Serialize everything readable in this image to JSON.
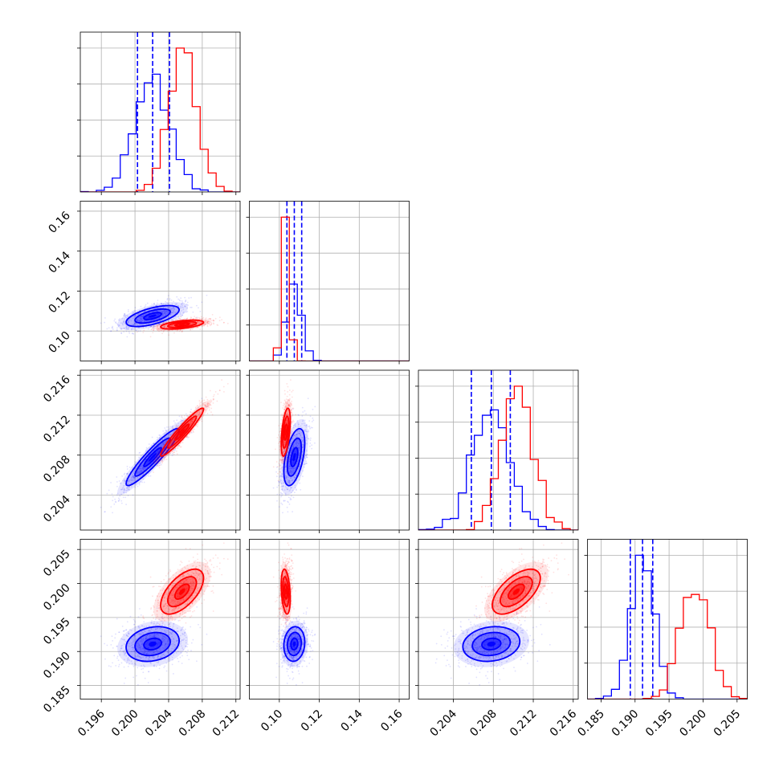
{
  "figure": {
    "kind": "corner-plot"
  },
  "colors": {
    "sample_a": "#0000ff",
    "sample_b": "#ff0000"
  },
  "chart_data": {
    "type": "corner",
    "parameters": [
      {
        "range": [
          0.1935,
          0.2125
        ],
        "ticks": [
          0.196,
          0.2,
          0.204,
          0.208,
          0.212
        ],
        "tick_labels": [
          "0.196",
          "0.200",
          "0.204",
          "0.208",
          "0.212"
        ]
      },
      {
        "range": [
          0.085,
          0.165
        ],
        "ticks": [
          0.1,
          0.12,
          0.14,
          0.16
        ],
        "tick_labels": [
          "0.10",
          "0.12",
          "0.14",
          "0.16"
        ]
      },
      {
        "range": [
          0.2005,
          0.2165
        ],
        "ticks": [
          0.204,
          0.208,
          0.212,
          0.216
        ],
        "tick_labels": [
          "0.204",
          "0.208",
          "0.212",
          "0.216"
        ]
      },
      {
        "range": [
          0.183,
          0.2065
        ],
        "ticks": [
          0.185,
          0.19,
          0.195,
          0.2,
          0.205
        ],
        "tick_labels": [
          "0.185",
          "0.190",
          "0.195",
          "0.200",
          "0.205"
        ]
      }
    ],
    "series": [
      {
        "color": "#0000ff",
        "means": [
          0.2021,
          0.1075,
          0.2078,
          0.1911
        ],
        "sds": [
          0.0021,
          0.0035,
          0.0019,
          0.0017
        ],
        "quantiles": [
          [
            0.2003,
            0.2021,
            0.2041
          ],
          [
            0.1038,
            0.1075,
            0.1112
          ],
          [
            0.2058,
            0.2078,
            0.2097
          ],
          [
            0.1893,
            0.1911,
            0.1926
          ]
        ],
        "correlations": [
          [
            1,
            0.6,
            0.93,
            0.2
          ],
          [
            0.6,
            1,
            0.5,
            0.1
          ],
          [
            0.93,
            0.5,
            1,
            0.15
          ],
          [
            0.2,
            0.1,
            0.15,
            1
          ]
        ]
      },
      {
        "color": "#ff0000",
        "means": [
          0.2056,
          0.1032,
          0.2103,
          0.1988
        ],
        "sds": [
          0.0017,
          0.0015,
          0.0016,
          0.0022
        ],
        "quantiles": null,
        "correlations": [
          [
            1,
            0.5,
            0.95,
            0.6
          ],
          [
            0.5,
            1,
            0.5,
            -0.3
          ],
          [
            0.95,
            0.5,
            1,
            0.6
          ],
          [
            0.6,
            -0.3,
            0.6,
            1
          ]
        ]
      }
    ],
    "histogram_bins": 20,
    "contour_levels": [
      0.5,
      1.0,
      1.5,
      2.0
    ],
    "grid": true,
    "legend": "none"
  }
}
